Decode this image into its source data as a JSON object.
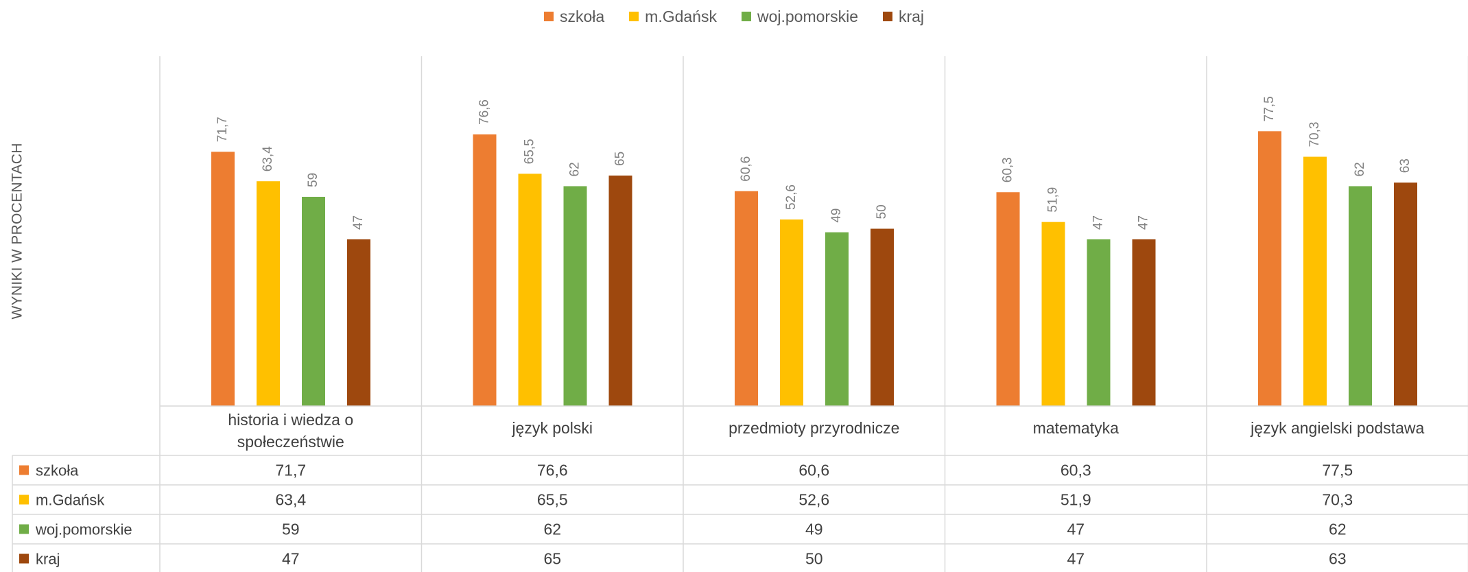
{
  "chart_data": {
    "type": "bar",
    "ylabel": "WYNIKI W PROCENTACH",
    "xlabel": "",
    "ylim": [
      0,
      100
    ],
    "categories": [
      [
        "historia i wiedza o",
        "społeczeństwie"
      ],
      [
        "język polski"
      ],
      [
        "przedmioty przyrodnicze"
      ],
      [
        "matematyka"
      ],
      [
        "język angielski podstawa"
      ]
    ],
    "series": [
      {
        "name": "szkoła",
        "color": "#ED7D31",
        "values": [
          71.7,
          76.6,
          60.6,
          60.3,
          77.5
        ],
        "labels": [
          "71,7",
          "76,6",
          "60,6",
          "60,3",
          "77,5"
        ]
      },
      {
        "name": "m.Gdańsk",
        "color": "#FFC000",
        "values": [
          63.4,
          65.5,
          52.6,
          51.9,
          70.3
        ],
        "labels": [
          "63,4",
          "65,5",
          "52,6",
          "51,9",
          "70,3"
        ]
      },
      {
        "name": "woj.pomorskie",
        "color": "#70AD47",
        "values": [
          59,
          62,
          49,
          47,
          62
        ],
        "labels": [
          "59",
          "62",
          "49",
          "47",
          "62"
        ]
      },
      {
        "name": "kraj",
        "color": "#9E480E",
        "values": [
          47,
          65,
          50,
          47,
          63
        ],
        "labels": [
          "47",
          "65",
          "50",
          "47",
          "63"
        ]
      }
    ],
    "legend_position": "top",
    "grid": false,
    "data_table": true
  }
}
